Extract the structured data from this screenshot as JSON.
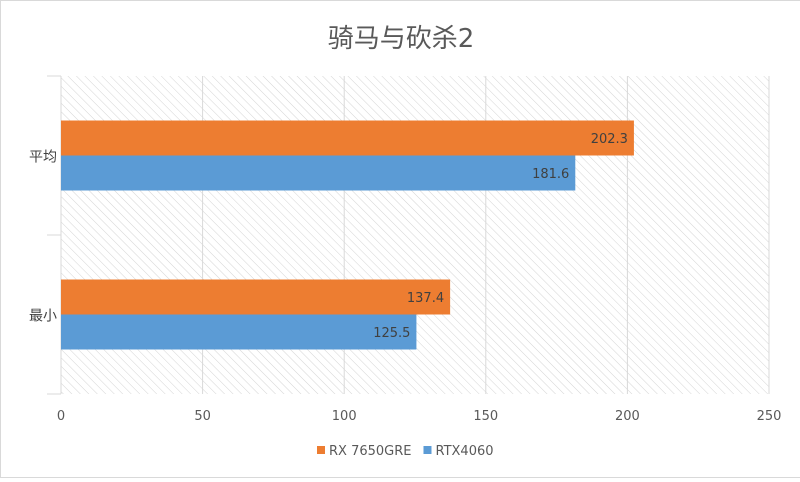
{
  "chart_data": {
    "type": "bar",
    "orientation": "horizontal",
    "title": "骑马与砍杀2",
    "categories": [
      "平均",
      "最小"
    ],
    "series": [
      {
        "name": "RX 7650GRE",
        "color": "#ED7D31",
        "values": [
          202.3,
          137.4
        ]
      },
      {
        "name": "RTX4060",
        "color": "#5B9BD5",
        "values": [
          181.6,
          125.5
        ]
      }
    ],
    "xlim": [
      0,
      250
    ],
    "xticks": [
      0,
      50,
      100,
      150,
      200,
      250
    ],
    "grid": true,
    "legend": "bottom",
    "data_labels": true,
    "background": "hatched"
  }
}
